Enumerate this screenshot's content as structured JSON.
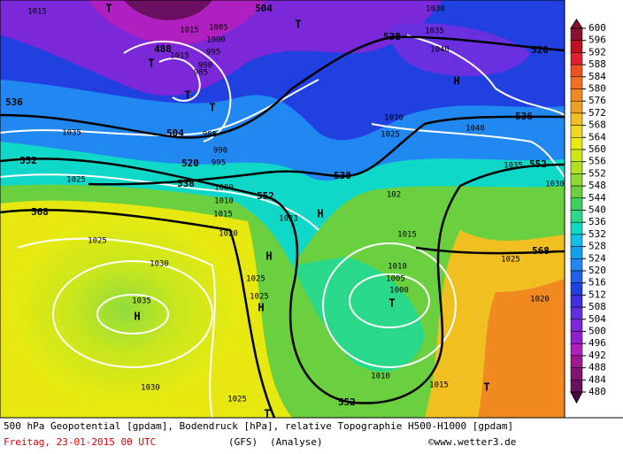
{
  "legend": {
    "levels": [
      600,
      596,
      592,
      588,
      584,
      580,
      576,
      572,
      568,
      564,
      560,
      556,
      552,
      548,
      544,
      540,
      536,
      532,
      528,
      524,
      520,
      516,
      512,
      508,
      504,
      500,
      496,
      492,
      488,
      484,
      480
    ],
    "colors": [
      "#8c1030",
      "#c01020",
      "#e02030",
      "#f05020",
      "#f07020",
      "#f08a20",
      "#f0a020",
      "#f0c020",
      "#f0d820",
      "#e8ea10",
      "#d0e618",
      "#b0e020",
      "#8ed830",
      "#6ad040",
      "#40d060",
      "#2ad88a",
      "#10d8c8",
      "#10c0e8",
      "#10a0f0",
      "#2088f0",
      "#2060e8",
      "#2040e0",
      "#4030e0",
      "#6030e0",
      "#7a28d8",
      "#9020d0",
      "#b020c0",
      "#a01890",
      "#801470",
      "#6a1060",
      "#500848"
    ]
  },
  "height_labels": [
    "504",
    "488",
    "504",
    "520",
    "538",
    "552",
    "552",
    "568",
    "538",
    "520",
    "536",
    "552",
    "568",
    "538",
    "552",
    "536"
  ],
  "pressure_labels": [
    "1015",
    "1015",
    "1005",
    "1000",
    "995",
    "990",
    "985",
    "1015",
    "1035",
    "1025",
    "1025",
    "1030",
    "1035",
    "1030",
    "1025",
    "1020",
    "1015",
    "1010",
    "1000",
    "995",
    "990",
    "985",
    "1023",
    "1025",
    "1025",
    "1030",
    "1035",
    "1040",
    "1030",
    "1025",
    "1040",
    "1035",
    "1030",
    "1025",
    "1020",
    "102",
    "1015",
    "1010",
    "1005",
    "1000",
    "1010",
    "1015"
  ],
  "pressure_centers": [
    "T",
    "T",
    "T",
    "T",
    "T",
    "H",
    "H",
    "H",
    "H",
    "H",
    "T",
    "T",
    "T"
  ],
  "footer": {
    "description": "500 hPa Geopotential [gpdam], Bodendruck [hPa], relative Topographie H500-H1000 [gpdam]",
    "date": "Freitag, 23-01-2015  00 UTC",
    "model": "(GFS)",
    "run": "(Analyse)",
    "credit": "©www.wetter3.de"
  }
}
